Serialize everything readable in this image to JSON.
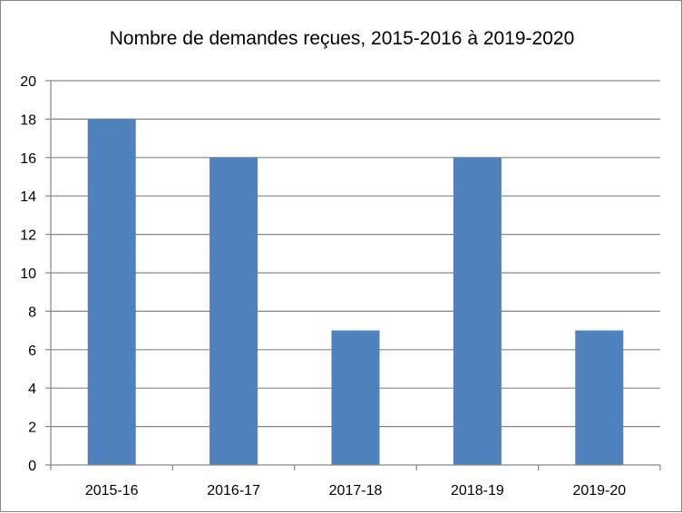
{
  "chart_data": {
    "type": "bar",
    "title": "Nombre de demandes reçues, 2015-2016 à 2019-2020",
    "categories": [
      "2015-16",
      "2016-17",
      "2017-18",
      "2018-19",
      "2019-20"
    ],
    "values": [
      18,
      16,
      7,
      16,
      7
    ],
    "xlabel": "",
    "ylabel": "",
    "ylim": [
      0,
      20
    ],
    "yticks": [
      "0",
      "2",
      "4",
      "6",
      "8",
      "10",
      "12",
      "14",
      "16",
      "18",
      "20"
    ],
    "grid": true,
    "legend": "none",
    "colors": {
      "bar": "#4F81BD",
      "grid": "#868686",
      "axis": "#868686"
    }
  }
}
